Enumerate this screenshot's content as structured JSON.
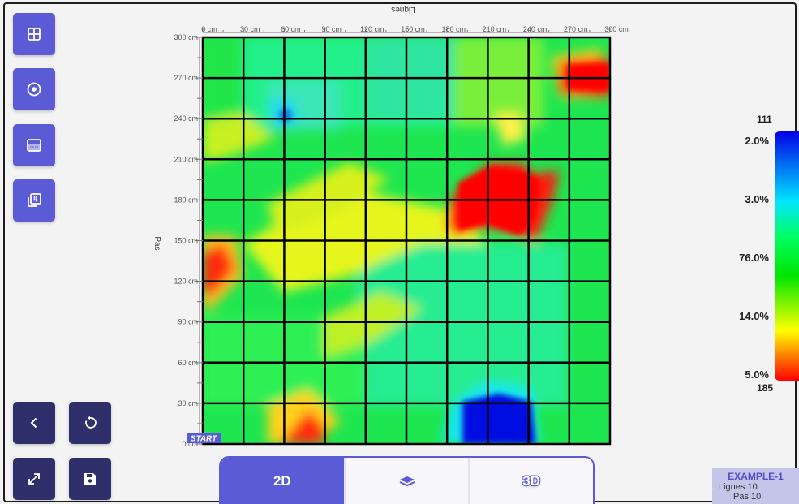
{
  "project": {
    "name": "EXAMPLE-1",
    "lignes_label": "Lignes:",
    "lignes_value": "10",
    "pas_label": "Pas:",
    "pas_value": "10"
  },
  "plot": {
    "x_axis_title": "Lignes",
    "y_axis_title": "Pas",
    "x_ticks": [
      "0 cm",
      "30 cm",
      "60 cm",
      "90 cm",
      "120 cm",
      "150 cm",
      "180 cm",
      "210 cm",
      "240 cm",
      "270 cm",
      "300 cm"
    ],
    "y_ticks": [
      "0 cm",
      "30 cm",
      "60 cm",
      "90 cm",
      "120 cm",
      "150 cm",
      "180 cm",
      "210 cm",
      "240 cm",
      "270 cm",
      "300 cm"
    ],
    "start_label": "START",
    "grid_cells": 10
  },
  "legend": {
    "max_value": "111",
    "min_value": "185",
    "bands": [
      "2.0%",
      "3.0%",
      "76.0%",
      "14.0%",
      "5.0%"
    ]
  },
  "toolbar": {
    "left_buttons": [
      "grid-view",
      "point-marker",
      "color-fill",
      "layer-count"
    ],
    "bottom_buttons": [
      "back",
      "reset",
      "expand",
      "save"
    ]
  },
  "view_modes": {
    "mode_2d": "2D",
    "mode_layers": "layers",
    "mode_3d": "3D",
    "active": "2D"
  },
  "colors": {
    "accent": "#5b5bd6",
    "accent_dark": "#2e2f6b",
    "info_bg": "#c5c5ea"
  }
}
